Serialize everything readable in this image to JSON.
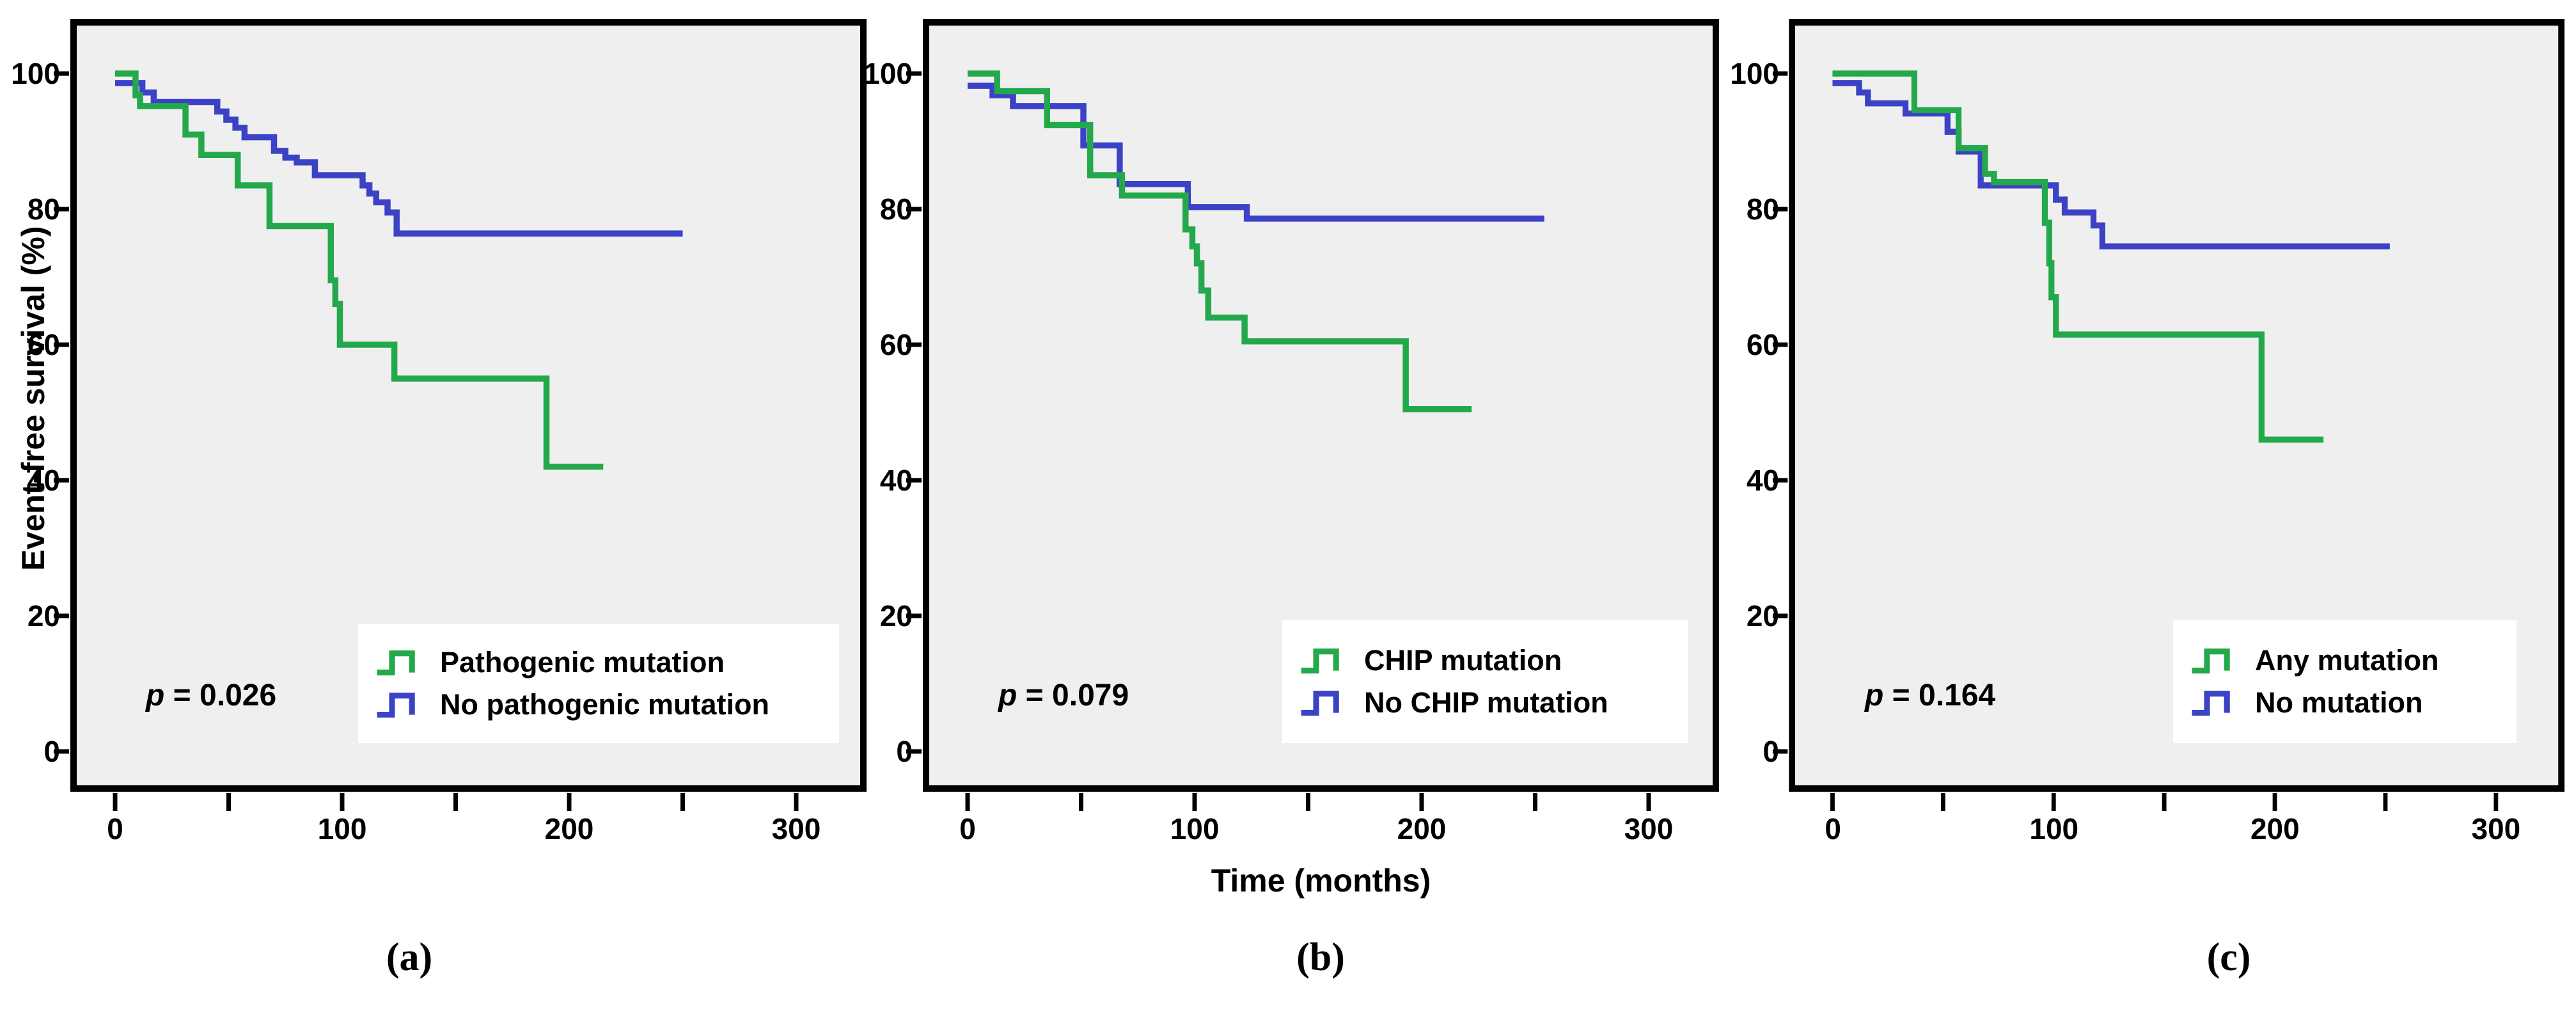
{
  "figure": {
    "y_axis_title": "Event-free survival (%)",
    "x_axis_title": "Time (months)",
    "colors": {
      "green": "#23A84B",
      "blue": "#3B42C5",
      "plot_bg": "#EFEFEF",
      "frame": "#000000",
      "legend_bg": "#FFFFFF",
      "text": "#000000"
    },
    "axis": {
      "x_tick_labels": [
        "0",
        "100",
        "200",
        "300"
      ],
      "y_tick_labels": [
        "100",
        "80",
        "60",
        "40",
        "20",
        "0"
      ],
      "x_tick_values": [
        0,
        100,
        200,
        300
      ],
      "x_minor_tick_values": [
        50,
        150,
        250
      ],
      "y_tick_values": [
        100,
        80,
        60,
        40,
        20,
        0
      ]
    }
  },
  "chart_data": [
    {
      "panel": "a",
      "type": "line",
      "subtype": "kaplan-meier-step",
      "caption": "(a)",
      "p_label": "p = 0.026",
      "p_symbol": "p",
      "p_rest": " = 0.026",
      "xlabel": "",
      "ylabel": "Event-free survival (%)",
      "xlim": [
        -20,
        320
      ],
      "ylim": [
        -8,
        108
      ],
      "x_unit": "months",
      "y_unit": "%",
      "grid": false,
      "legend_position": "lower-right",
      "legend": [
        {
          "label": "Pathogenic mutation",
          "color": "green"
        },
        {
          "label": "No pathogenic mutation",
          "color": "blue"
        }
      ],
      "series": [
        {
          "name": "Pathogenic mutation",
          "color": "green",
          "end_time": 215,
          "steps": [
            [
              0,
              100
            ],
            [
              9,
              96.8
            ],
            [
              11,
              95.2
            ],
            [
              31,
              91
            ],
            [
              38,
              88
            ],
            [
              54,
              83.5
            ],
            [
              68,
              77.5
            ],
            [
              95,
              69.5
            ],
            [
              97,
              66
            ],
            [
              99,
              60
            ],
            [
              123,
              55
            ],
            [
              190,
              42
            ]
          ]
        },
        {
          "name": "No pathogenic mutation",
          "color": "blue",
          "end_time": 250,
          "steps": [
            [
              0,
              98.6
            ],
            [
              12,
              97.2
            ],
            [
              17,
              95.8
            ],
            [
              45,
              94.4
            ],
            [
              49,
              93.2
            ],
            [
              53,
              92
            ],
            [
              57,
              90.6
            ],
            [
              70,
              88.6
            ],
            [
              75,
              87.6
            ],
            [
              80,
              86.9
            ],
            [
              88,
              85
            ],
            [
              109,
              83.5
            ],
            [
              112,
              82.3
            ],
            [
              115,
              81
            ],
            [
              120,
              79.5
            ],
            [
              124,
              76.4
            ]
          ]
        }
      ]
    },
    {
      "panel": "b",
      "type": "line",
      "subtype": "kaplan-meier-step",
      "caption": "(b)",
      "p_label": "p = 0.079",
      "p_symbol": "p",
      "p_rest": " = 0.079",
      "xlabel": "Time (months)",
      "ylabel": "",
      "xlim": [
        -20,
        320
      ],
      "ylim": [
        -8,
        108
      ],
      "x_unit": "months",
      "y_unit": "%",
      "grid": false,
      "legend_position": "lower-right",
      "legend": [
        {
          "label": "CHIP mutation",
          "color": "green"
        },
        {
          "label": "No CHIP mutation",
          "color": "blue"
        }
      ],
      "series": [
        {
          "name": "CHIP mutation",
          "color": "green",
          "end_time": 222,
          "steps": [
            [
              0,
              100
            ],
            [
              13,
              97.4
            ],
            [
              35,
              92.4
            ],
            [
              54,
              85
            ],
            [
              68,
              82
            ],
            [
              96,
              77
            ],
            [
              99,
              74.5
            ],
            [
              101,
              72
            ],
            [
              103,
              68
            ],
            [
              106,
              64
            ],
            [
              122,
              60.5
            ],
            [
              193,
              50.5
            ]
          ]
        },
        {
          "name": "No CHIP mutation",
          "color": "blue",
          "end_time": 254,
          "steps": [
            [
              0,
              98.2
            ],
            [
              11,
              96.8
            ],
            [
              20,
              95.2
            ],
            [
              51,
              89.4
            ],
            [
              67,
              83.7
            ],
            [
              97,
              80.3
            ],
            [
              123,
              78.6
            ]
          ]
        }
      ]
    },
    {
      "panel": "c",
      "type": "line",
      "subtype": "kaplan-meier-step",
      "caption": "(c)",
      "p_label": "p = 0.164",
      "p_symbol": "p",
      "p_rest": " = 0.164",
      "xlabel": "",
      "ylabel": "",
      "xlim": [
        -20,
        320
      ],
      "ylim": [
        -8,
        108
      ],
      "x_unit": "months",
      "y_unit": "%",
      "grid": false,
      "legend_position": "lower-right",
      "legend": [
        {
          "label": "Any mutation",
          "color": "green"
        },
        {
          "label": "No mutation",
          "color": "blue"
        }
      ],
      "series": [
        {
          "name": "Any mutation",
          "color": "green",
          "end_time": 222,
          "steps": [
            [
              0,
              100
            ],
            [
              37,
              94.6
            ],
            [
              57,
              89
            ],
            [
              69,
              85.2
            ],
            [
              73,
              84
            ],
            [
              96,
              78
            ],
            [
              98,
              72
            ],
            [
              99,
              67
            ],
            [
              101,
              61.5
            ],
            [
              194,
              46
            ]
          ]
        },
        {
          "name": "No mutation",
          "color": "blue",
          "end_time": 252,
          "steps": [
            [
              0,
              98.6
            ],
            [
              12,
              97.2
            ],
            [
              16,
              95.6
            ],
            [
              33,
              94.1
            ],
            [
              52,
              91.4
            ],
            [
              57,
              88.5
            ],
            [
              67,
              83.5
            ],
            [
              101,
              81.4
            ],
            [
              105,
              79.5
            ],
            [
              118,
              77.6
            ],
            [
              122,
              74.5
            ]
          ]
        }
      ]
    }
  ]
}
